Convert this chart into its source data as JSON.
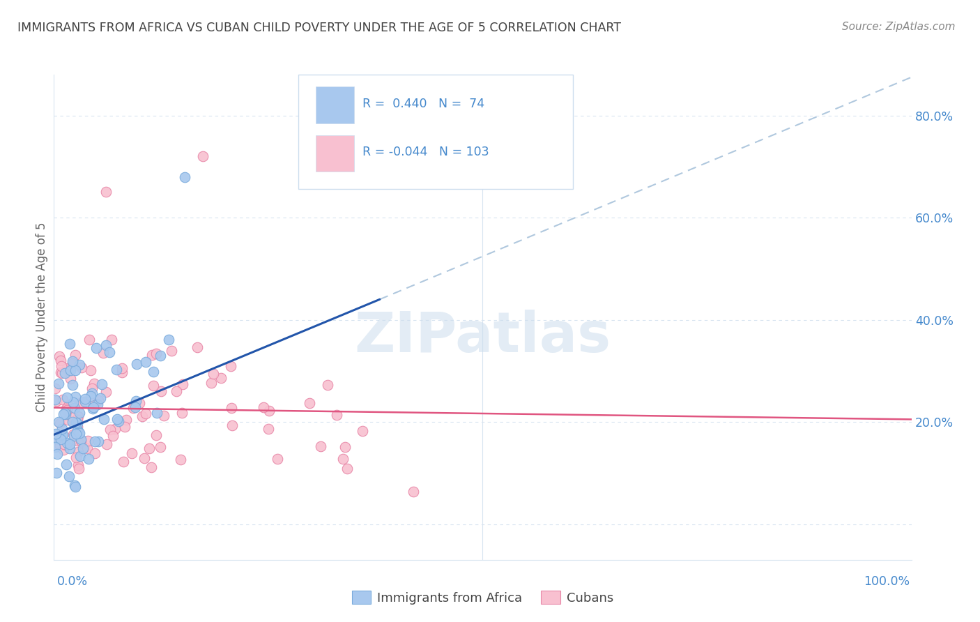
{
  "title": "IMMIGRANTS FROM AFRICA VS CUBAN CHILD POVERTY UNDER THE AGE OF 5 CORRELATION CHART",
  "source": "Source: ZipAtlas.com",
  "ylabel": "Child Poverty Under the Age of 5",
  "xlim": [
    0.0,
    1.0
  ],
  "ylim": [
    -0.07,
    0.88
  ],
  "yticks": [
    0.0,
    0.2,
    0.4,
    0.6,
    0.8
  ],
  "ytick_labels": [
    "",
    "20.0%",
    "40.0%",
    "60.0%",
    "80.0%"
  ],
  "blue_R": 0.44,
  "blue_N": 74,
  "pink_R": -0.044,
  "pink_N": 103,
  "legend_labels": [
    "Immigrants from Africa",
    "Cubans"
  ],
  "blue_color": "#a8c8ee",
  "blue_edge_color": "#7aabdc",
  "blue_line_color": "#2255aa",
  "pink_color": "#f8c0d0",
  "pink_edge_color": "#e888a8",
  "pink_line_color": "#e05580",
  "dashed_line_color": "#b0c8de",
  "watermark_color": "#ccdded",
  "background_color": "#ffffff",
  "grid_color": "#d8e4f0",
  "title_color": "#404040",
  "axis_color": "#4488cc",
  "legend_bg": "#ffffff",
  "legend_border": "#ccddee"
}
